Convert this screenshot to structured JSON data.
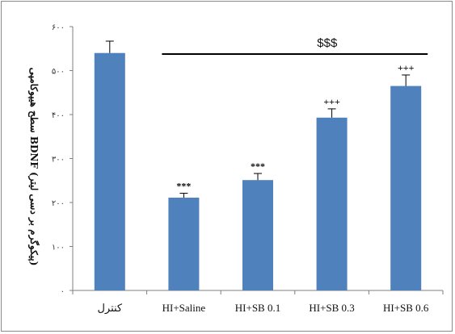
{
  "chart_data": {
    "type": "bar",
    "categories": [
      "کنترل",
      "HI+Saline",
      "HI+SB 0.1",
      "HI+SB 0.3",
      "HI+SB 0.6"
    ],
    "values": [
      540,
      211,
      251,
      393,
      465
    ],
    "errors": [
      27,
      10,
      15,
      20,
      25
    ],
    "significance": [
      "",
      "***",
      "***",
      "+++",
      "+++"
    ],
    "ylabel": "سطح هیپوکامپی BDNF (پیکوگرم بر دسی لیتر)",
    "ylim": [
      0,
      600
    ],
    "yticks": [
      "۰",
      "۱۰۰",
      "۲۰۰",
      "۳۰۰",
      "۴۰۰",
      "۵۰۰",
      "۶۰۰"
    ],
    "group_annotation": "$$$",
    "grid": false,
    "legend": "none",
    "bar_color": "#4F81BD"
  }
}
